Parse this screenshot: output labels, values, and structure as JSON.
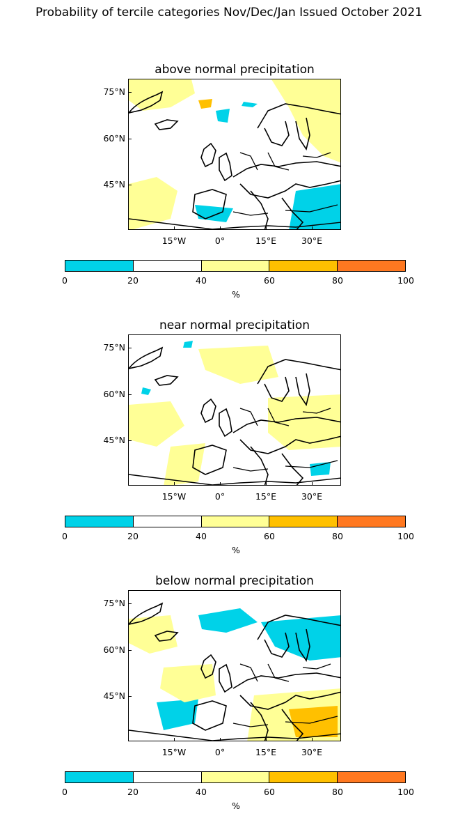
{
  "title": "Probability of tercile categories Nov/Dec/Jan Issued October 2021",
  "lat_labels": [
    "75°N",
    "60°N",
    "45°N"
  ],
  "lon_labels": [
    "15°W",
    "0°",
    "15°E",
    "30°E"
  ],
  "colorbar": {
    "ticks": [
      "0",
      "20",
      "40",
      "60",
      "80",
      "100"
    ],
    "unit": "%",
    "colors": [
      "#00d2e8",
      "#ffffff",
      "#ffff96",
      "#ffc000",
      "#ff7820"
    ]
  },
  "panels": [
    {
      "title": "above normal precipitation"
    },
    {
      "title": "near normal precipitation"
    },
    {
      "title": "below normal precipitation"
    }
  ]
}
